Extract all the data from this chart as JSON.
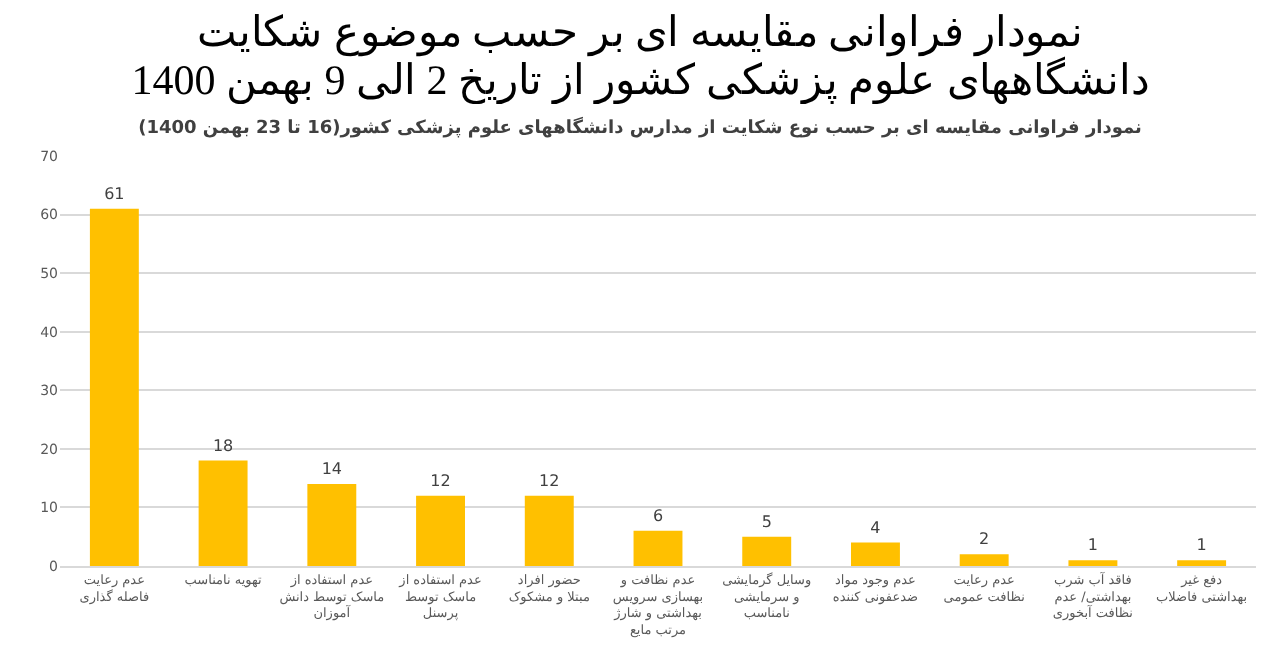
{
  "chart_data": {
    "type": "bar",
    "title": "نمودار فراوانی مقایسه ای بر حسب موضوع شکایت\nدانشگاههای علوم پزشکی کشور از تاریخ 2 الی 9 بهمن 1400",
    "subtitle": "نمودار فراوانی مقایسه ای بر حسب نوع شکایت از مدارس دانشگاههای علوم پزشکی کشور(16 تا 23 بهمن 1400)",
    "categories": [
      "عدم رعایت فاصله گذاری",
      "تهویه نامناسب",
      "عدم استفاده از ماسک توسط دانش آموزان",
      "عدم استفاده از ماسک توسط پرسنل",
      "حضور افراد مبتلا و مشکوک",
      "عدم نظافت و بهسازی سرویس بهداشتی و شارژ مرتب مایع",
      "وسایل گرمایشی و سرمایشی نامناسب",
      "عدم وجود مواد ضدعفونی کننده",
      "عدم رعایت نظافت عمومی",
      "فاقد آب شرب بهداشتی/ عدم نظافت آبخوری",
      "دفع غیر بهداشتی فاضلاب"
    ],
    "values": [
      61,
      18,
      14,
      12,
      12,
      6,
      5,
      4,
      2,
      1,
      1
    ],
    "color": "#ffc000",
    "ylim": [
      0,
      70
    ],
    "yticks": [
      0,
      10,
      20,
      30,
      40,
      50,
      60,
      70
    ],
    "grid": "y",
    "data_labels": true,
    "legend": false
  }
}
